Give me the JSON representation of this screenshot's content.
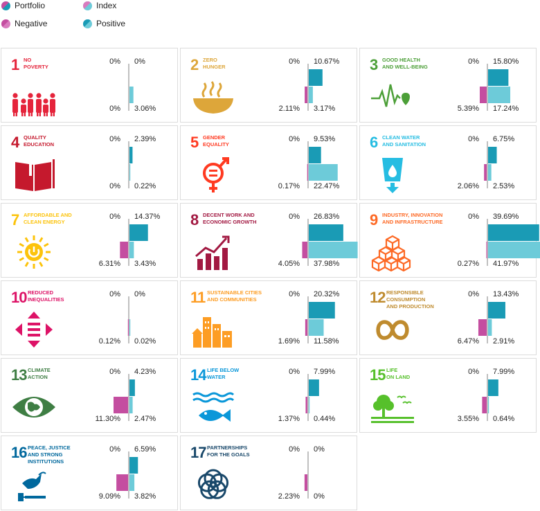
{
  "legend": {
    "portfolio": "Portfolio",
    "index": "Index",
    "negative": "Negative",
    "positive": "Positive"
  },
  "colors": {
    "portfolio": "#1a9bb5",
    "index": "#6dcbd9",
    "negative_portfolio": "#c44ea0",
    "negative_index": "#d97bbe",
    "axis": "#aaaaaa"
  },
  "chart_data": {
    "type": "bar",
    "scale_max": 41.97,
    "goals": [
      {
        "num": "1",
        "title_lines": [
          "NO",
          "POVERTY"
        ],
        "color": "#e5243b",
        "icon": "family-icon",
        "neg_portfolio": 0,
        "neg_index": 0,
        "pos_portfolio": 0,
        "pos_index": 3.06,
        "labels": {
          "tl": "0%",
          "tr": "0%",
          "bl": "0%",
          "br": "3.06%"
        }
      },
      {
        "num": "2",
        "title_lines": [
          "ZERO",
          "HUNGER"
        ],
        "color": "#dda63a",
        "icon": "bowl-icon",
        "neg_portfolio": 0,
        "neg_index": 2.11,
        "pos_portfolio": 10.67,
        "pos_index": 3.17,
        "labels": {
          "tl": "0%",
          "tr": "10.67%",
          "bl": "2.11%",
          "br": "3.17%"
        }
      },
      {
        "num": "3",
        "title_lines": [
          "GOOD HEALTH",
          "AND WELL-BEING"
        ],
        "color": "#4c9f38",
        "icon": "heartbeat-icon",
        "neg_portfolio": 0,
        "neg_index": 5.39,
        "pos_portfolio": 15.8,
        "pos_index": 17.24,
        "labels": {
          "tl": "0%",
          "tr": "15.80%",
          "bl": "5.39%",
          "br": "17.24%"
        }
      },
      {
        "num": "4",
        "title_lines": [
          "QUALITY",
          "EDUCATION"
        ],
        "color": "#c5192d",
        "icon": "book-icon",
        "neg_portfolio": 0,
        "neg_index": 0,
        "pos_portfolio": 2.39,
        "pos_index": 0.22,
        "labels": {
          "tl": "0%",
          "tr": "2.39%",
          "bl": "0%",
          "br": "0.22%"
        }
      },
      {
        "num": "5",
        "title_lines": [
          "GENDER",
          "EQUALITY"
        ],
        "color": "#ff3a21",
        "icon": "gender-icon",
        "neg_portfolio": 0,
        "neg_index": 0.17,
        "pos_portfolio": 9.53,
        "pos_index": 22.47,
        "labels": {
          "tl": "0%",
          "tr": "9.53%",
          "bl": "0.17%",
          "br": "22.47%"
        }
      },
      {
        "num": "6",
        "title_lines": [
          "CLEAN WATER",
          "AND SANITATION"
        ],
        "color": "#26bde2",
        "icon": "water-glass-icon",
        "neg_portfolio": 0,
        "neg_index": 2.06,
        "pos_portfolio": 6.75,
        "pos_index": 2.53,
        "labels": {
          "tl": "0%",
          "tr": "6.75%",
          "bl": "2.06%",
          "br": "2.53%"
        }
      },
      {
        "num": "7",
        "title_lines": [
          "AFFORDABLE AND",
          "CLEAN ENERGY"
        ],
        "color": "#fcc30b",
        "icon": "sun-power-icon",
        "neg_portfolio": 0,
        "neg_index": 6.31,
        "pos_portfolio": 14.37,
        "pos_index": 3.43,
        "labels": {
          "tl": "0%",
          "tr": "14.37%",
          "bl": "6.31%",
          "br": "3.43%"
        }
      },
      {
        "num": "8",
        "title_lines": [
          "DECENT WORK AND",
          "ECONOMIC GROWTH"
        ],
        "color": "#a21942",
        "icon": "growth-chart-icon",
        "neg_portfolio": 0,
        "neg_index": 4.05,
        "pos_portfolio": 26.83,
        "pos_index": 37.98,
        "labels": {
          "tl": "0%",
          "tr": "26.83%",
          "bl": "4.05%",
          "br": "37.98%"
        }
      },
      {
        "num": "9",
        "title_lines": [
          "INDUSTRY, INNOVATION",
          "AND INFRASTRUCTURE"
        ],
        "color": "#fd6925",
        "icon": "cubes-icon",
        "neg_portfolio": 0,
        "neg_index": 0.27,
        "pos_portfolio": 39.69,
        "pos_index": 41.97,
        "labels": {
          "tl": "0%",
          "tr": "39.69%",
          "bl": "0.27%",
          "br": "41.97%"
        }
      },
      {
        "num": "10",
        "title_lines": [
          "REDUCED",
          "INEQUALITIES"
        ],
        "color": "#dd1367",
        "icon": "equality-arrows-icon",
        "neg_portfolio": 0,
        "neg_index": 0.12,
        "pos_portfolio": 0,
        "pos_index": 0.02,
        "labels": {
          "tl": "0%",
          "tr": "0%",
          "bl": "0.12%",
          "br": "0.02%"
        }
      },
      {
        "num": "11",
        "title_lines": [
          "SUSTAINABLE CITIES",
          "AND COMMUNITIES"
        ],
        "color": "#fd9d24",
        "icon": "city-icon",
        "neg_portfolio": 0,
        "neg_index": 1.69,
        "pos_portfolio": 20.32,
        "pos_index": 11.58,
        "labels": {
          "tl": "0%",
          "tr": "20.32%",
          "bl": "1.69%",
          "br": "11.58%"
        }
      },
      {
        "num": "12",
        "title_lines": [
          "RESPONSIBLE",
          "CONSUMPTION",
          "AND PRODUCTION"
        ],
        "color": "#bf8b2e",
        "icon": "infinity-icon",
        "neg_portfolio": 0,
        "neg_index": 6.47,
        "pos_portfolio": 13.43,
        "pos_index": 2.91,
        "labels": {
          "tl": "0%",
          "tr": "13.43%",
          "bl": "6.47%",
          "br": "2.91%"
        }
      },
      {
        "num": "13",
        "title_lines": [
          "CLIMATE",
          "ACTION"
        ],
        "color": "#3f7e44",
        "icon": "earth-eye-icon",
        "neg_portfolio": 0,
        "neg_index": 11.3,
        "pos_portfolio": 4.23,
        "pos_index": 2.47,
        "labels": {
          "tl": "0%",
          "tr": "4.23%",
          "bl": "11.30%",
          "br": "2.47%"
        }
      },
      {
        "num": "14",
        "title_lines": [
          "LIFE BELOW",
          "WATER"
        ],
        "color": "#0a97d9",
        "icon": "fish-icon",
        "neg_portfolio": 0,
        "neg_index": 1.37,
        "pos_portfolio": 7.99,
        "pos_index": 0.44,
        "labels": {
          "tl": "0%",
          "tr": "7.99%",
          "bl": "1.37%",
          "br": "0.44%"
        }
      },
      {
        "num": "15",
        "title_lines": [
          "LIFE",
          "ON LAND"
        ],
        "color": "#56c02b",
        "icon": "tree-birds-icon",
        "neg_portfolio": 0,
        "neg_index": 3.55,
        "pos_portfolio": 7.99,
        "pos_index": 0.64,
        "labels": {
          "tl": "0%",
          "tr": "7.99%",
          "bl": "3.55%",
          "br": "0.64%"
        }
      },
      {
        "num": "16",
        "title_lines": [
          "PEACE, JUSTICE",
          "AND STRONG",
          "INSTITUTIONS"
        ],
        "color": "#00689d",
        "icon": "dove-gavel-icon",
        "neg_portfolio": 0,
        "neg_index": 9.09,
        "pos_portfolio": 6.59,
        "pos_index": 3.82,
        "labels": {
          "tl": "0%",
          "tr": "6.59%",
          "bl": "9.09%",
          "br": "3.82%"
        }
      },
      {
        "num": "17",
        "title_lines": [
          "PARTNERSHIPS",
          "FOR THE GOALS"
        ],
        "color": "#19486a",
        "icon": "rings-icon",
        "neg_portfolio": 0,
        "neg_index": 2.23,
        "pos_portfolio": 0,
        "pos_index": 0,
        "labels": {
          "tl": "0%",
          "tr": "0%",
          "bl": "2.23%",
          "br": "0%"
        }
      }
    ]
  }
}
